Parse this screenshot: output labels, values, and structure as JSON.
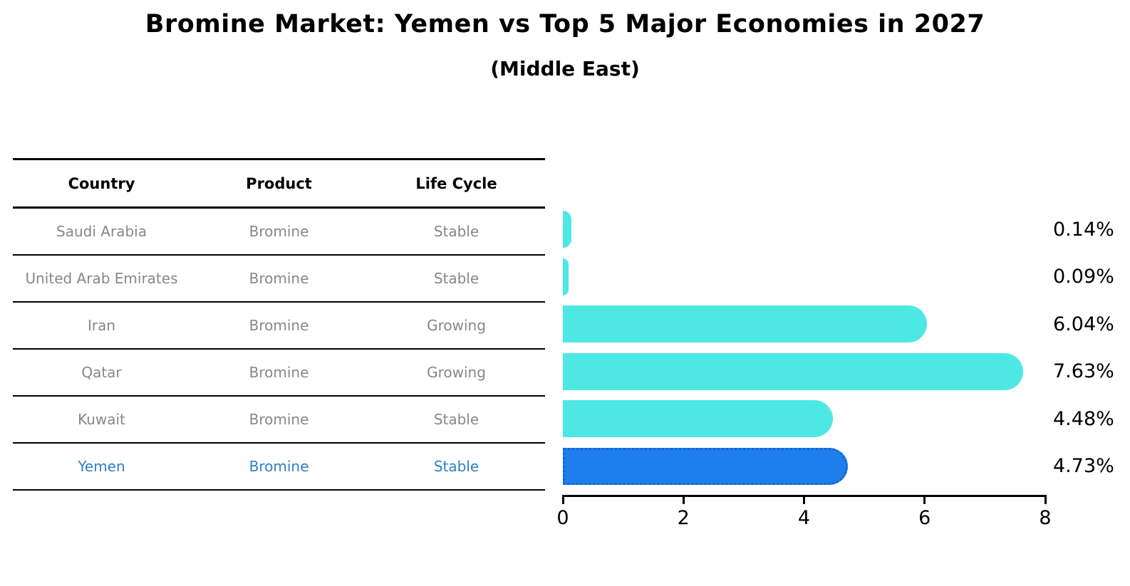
{
  "header": {
    "title": "Bromine Market: Yemen vs Top 5 Major Economies in 2027",
    "subtitle": "(Middle East)"
  },
  "table": {
    "columns": [
      "Country",
      "Product",
      "Life Cycle"
    ],
    "rows": [
      {
        "country": "Saudi Arabia",
        "product": "Bromine",
        "life_cycle": "Stable",
        "highlighted": false
      },
      {
        "country": "United Arab Emirates",
        "product": "Bromine",
        "life_cycle": "Stable",
        "highlighted": false
      },
      {
        "country": "Iran",
        "product": "Bromine",
        "life_cycle": "Growing",
        "highlighted": false
      },
      {
        "country": "Qatar",
        "product": "Bromine",
        "life_cycle": "Growing",
        "highlighted": false
      },
      {
        "country": "Kuwait",
        "product": "Bromine",
        "life_cycle": "Stable",
        "highlighted": false
      },
      {
        "country": "Yemen",
        "product": "Bromine",
        "life_cycle": "Stable",
        "highlighted": true
      }
    ]
  },
  "chart_data": {
    "type": "bar",
    "orientation": "horizontal",
    "title": "Bromine Market: Yemen vs Top 5 Major Economies in 2027",
    "subtitle": "(Middle East)",
    "categories": [
      "Saudi Arabia",
      "United Arab Emirates",
      "Iran",
      "Qatar",
      "Kuwait",
      "Yemen"
    ],
    "values": [
      0.14,
      0.09,
      6.04,
      7.63,
      4.48,
      4.73
    ],
    "value_labels": [
      "0.14%",
      "0.09%",
      "6.04%",
      "7.63%",
      "4.48%",
      "4.73%"
    ],
    "highlighted_category": "Yemen",
    "xlim": [
      0,
      8
    ],
    "x_ticks": [
      0,
      2,
      4,
      6,
      8
    ],
    "grid": false,
    "legend": false,
    "colors": {
      "bar": "#4de8e4",
      "highlight_bar": "#1e7eeb",
      "highlight_border": "#1565d0",
      "highlight_text": "#2e7fc9",
      "row_text": "#878787",
      "axis": "#000000"
    }
  }
}
